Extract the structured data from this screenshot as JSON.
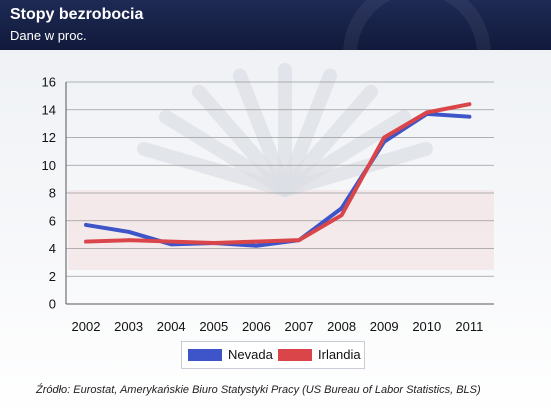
{
  "header": {
    "title": "Stopy bezrobocia",
    "subtitle": "Dane w proc."
  },
  "colors": {
    "header_bg": "#1a2550",
    "nevada": "#3d55c9",
    "irlandia": "#d94548",
    "grid": "#9a9a9a"
  },
  "chart_data": {
    "type": "line",
    "title": "Stopy bezrobocia",
    "subtitle": "Dane w proc.",
    "xlabel": "",
    "ylabel": "",
    "x": [
      "2002",
      "2003",
      "2004",
      "2005",
      "2006",
      "2007",
      "2008",
      "2009",
      "2010",
      "2011"
    ],
    "yticks": [
      0,
      2,
      4,
      6,
      8,
      10,
      12,
      14,
      16
    ],
    "ylim": [
      0,
      16
    ],
    "grid": true,
    "legend_position": "bottom",
    "series": [
      {
        "name": "Nevada",
        "color": "#3d55c9",
        "values": [
          5.7,
          5.2,
          4.3,
          4.4,
          4.2,
          4.6,
          6.9,
          11.7,
          13.7,
          13.5
        ]
      },
      {
        "name": "Irlandia",
        "color": "#d94548",
        "values": [
          4.5,
          4.6,
          4.5,
          4.4,
          4.5,
          4.6,
          6.4,
          12.0,
          13.8,
          14.4
        ]
      }
    ]
  },
  "source": "Źródło: Eurostat, Amerykańskie Biuro Statystyki Pracy (US Bureau of Labor Statistics, BLS)"
}
